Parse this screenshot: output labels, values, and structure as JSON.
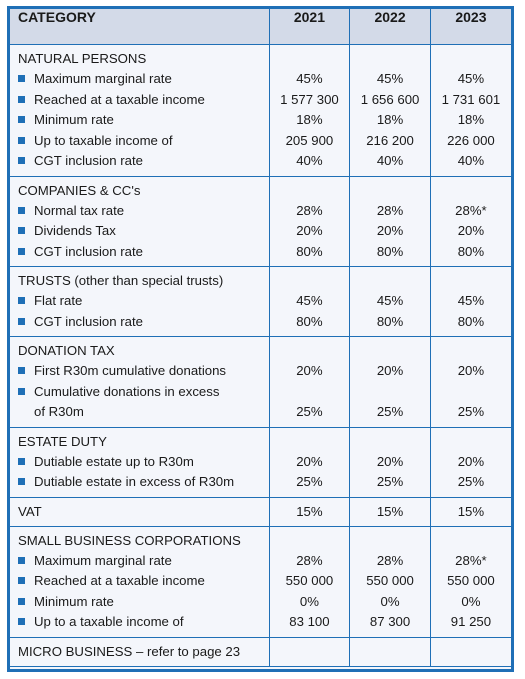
{
  "header": {
    "category": "CATEGORY",
    "years": [
      "2021",
      "2022",
      "2023"
    ]
  },
  "sections": [
    {
      "title": "NATURAL PERSONS",
      "rows": [
        {
          "label": "Maximum marginal rate",
          "values": [
            "45%",
            "45%",
            "45%"
          ]
        },
        {
          "label": "Reached at a taxable income",
          "values": [
            "1 577 300",
            "1 656 600",
            "1 731 601"
          ]
        },
        {
          "label": "Minimum rate",
          "values": [
            "18%",
            "18%",
            "18%"
          ]
        },
        {
          "label": "Up to taxable income of",
          "values": [
            "205 900",
            "216 200",
            "226 000"
          ]
        },
        {
          "label": "CGT inclusion rate",
          "values": [
            "40%",
            "40%",
            "40%"
          ]
        }
      ]
    },
    {
      "title": "COMPANIES & CC's",
      "rows": [
        {
          "label": "Normal tax rate",
          "values": [
            "28%",
            "28%",
            "28%*"
          ]
        },
        {
          "label": "Dividends Tax",
          "values": [
            "20%",
            "20%",
            "20%"
          ]
        },
        {
          "label": "CGT inclusion rate",
          "values": [
            "80%",
            "80%",
            "80%"
          ]
        }
      ]
    },
    {
      "title": "TRUSTS (other than special trusts)",
      "rows": [
        {
          "label": "Flat rate",
          "values": [
            "45%",
            "45%",
            "45%"
          ]
        },
        {
          "label": "CGT inclusion rate",
          "values": [
            "80%",
            "80%",
            "80%"
          ]
        }
      ]
    },
    {
      "title": "DONATION TAX",
      "rows": [
        {
          "label": "First R30m cumulative donations",
          "values": [
            "20%",
            "20%",
            "20%"
          ]
        },
        {
          "label": "Cumulative donations in excess",
          "label_cont": "of R30m",
          "values": [
            "25%",
            "25%",
            "25%"
          ]
        }
      ]
    },
    {
      "title": "ESTATE DUTY",
      "rows": [
        {
          "label": "Dutiable estate up to R30m",
          "values": [
            "20%",
            "20%",
            "20%"
          ]
        },
        {
          "label": "Dutiable estate in excess of R30m",
          "values": [
            "25%",
            "25%",
            "25%"
          ]
        }
      ]
    },
    {
      "title": "VAT",
      "inline_values": [
        "15%",
        "15%",
        "15%"
      ],
      "rows": []
    },
    {
      "title": "SMALL BUSINESS CORPORATIONS",
      "rows": [
        {
          "label": "Maximum marginal rate",
          "values": [
            "28%",
            "28%",
            "28%*"
          ]
        },
        {
          "label": "Reached at a taxable income",
          "values": [
            "550 000",
            "550 000",
            "550 000"
          ]
        },
        {
          "label": "Minimum rate",
          "values": [
            "0%",
            "0%",
            "0%"
          ]
        },
        {
          "label": "Up to a taxable income of",
          "values": [
            "83 100",
            "87 300",
            "91 250"
          ]
        }
      ]
    },
    {
      "title": "MICRO BUSINESS – refer to page 23",
      "rows": []
    }
  ],
  "colors": {
    "border": "#1f6fb6",
    "header_bg": "#d3dae8",
    "bullet": "#1f6fb6"
  }
}
